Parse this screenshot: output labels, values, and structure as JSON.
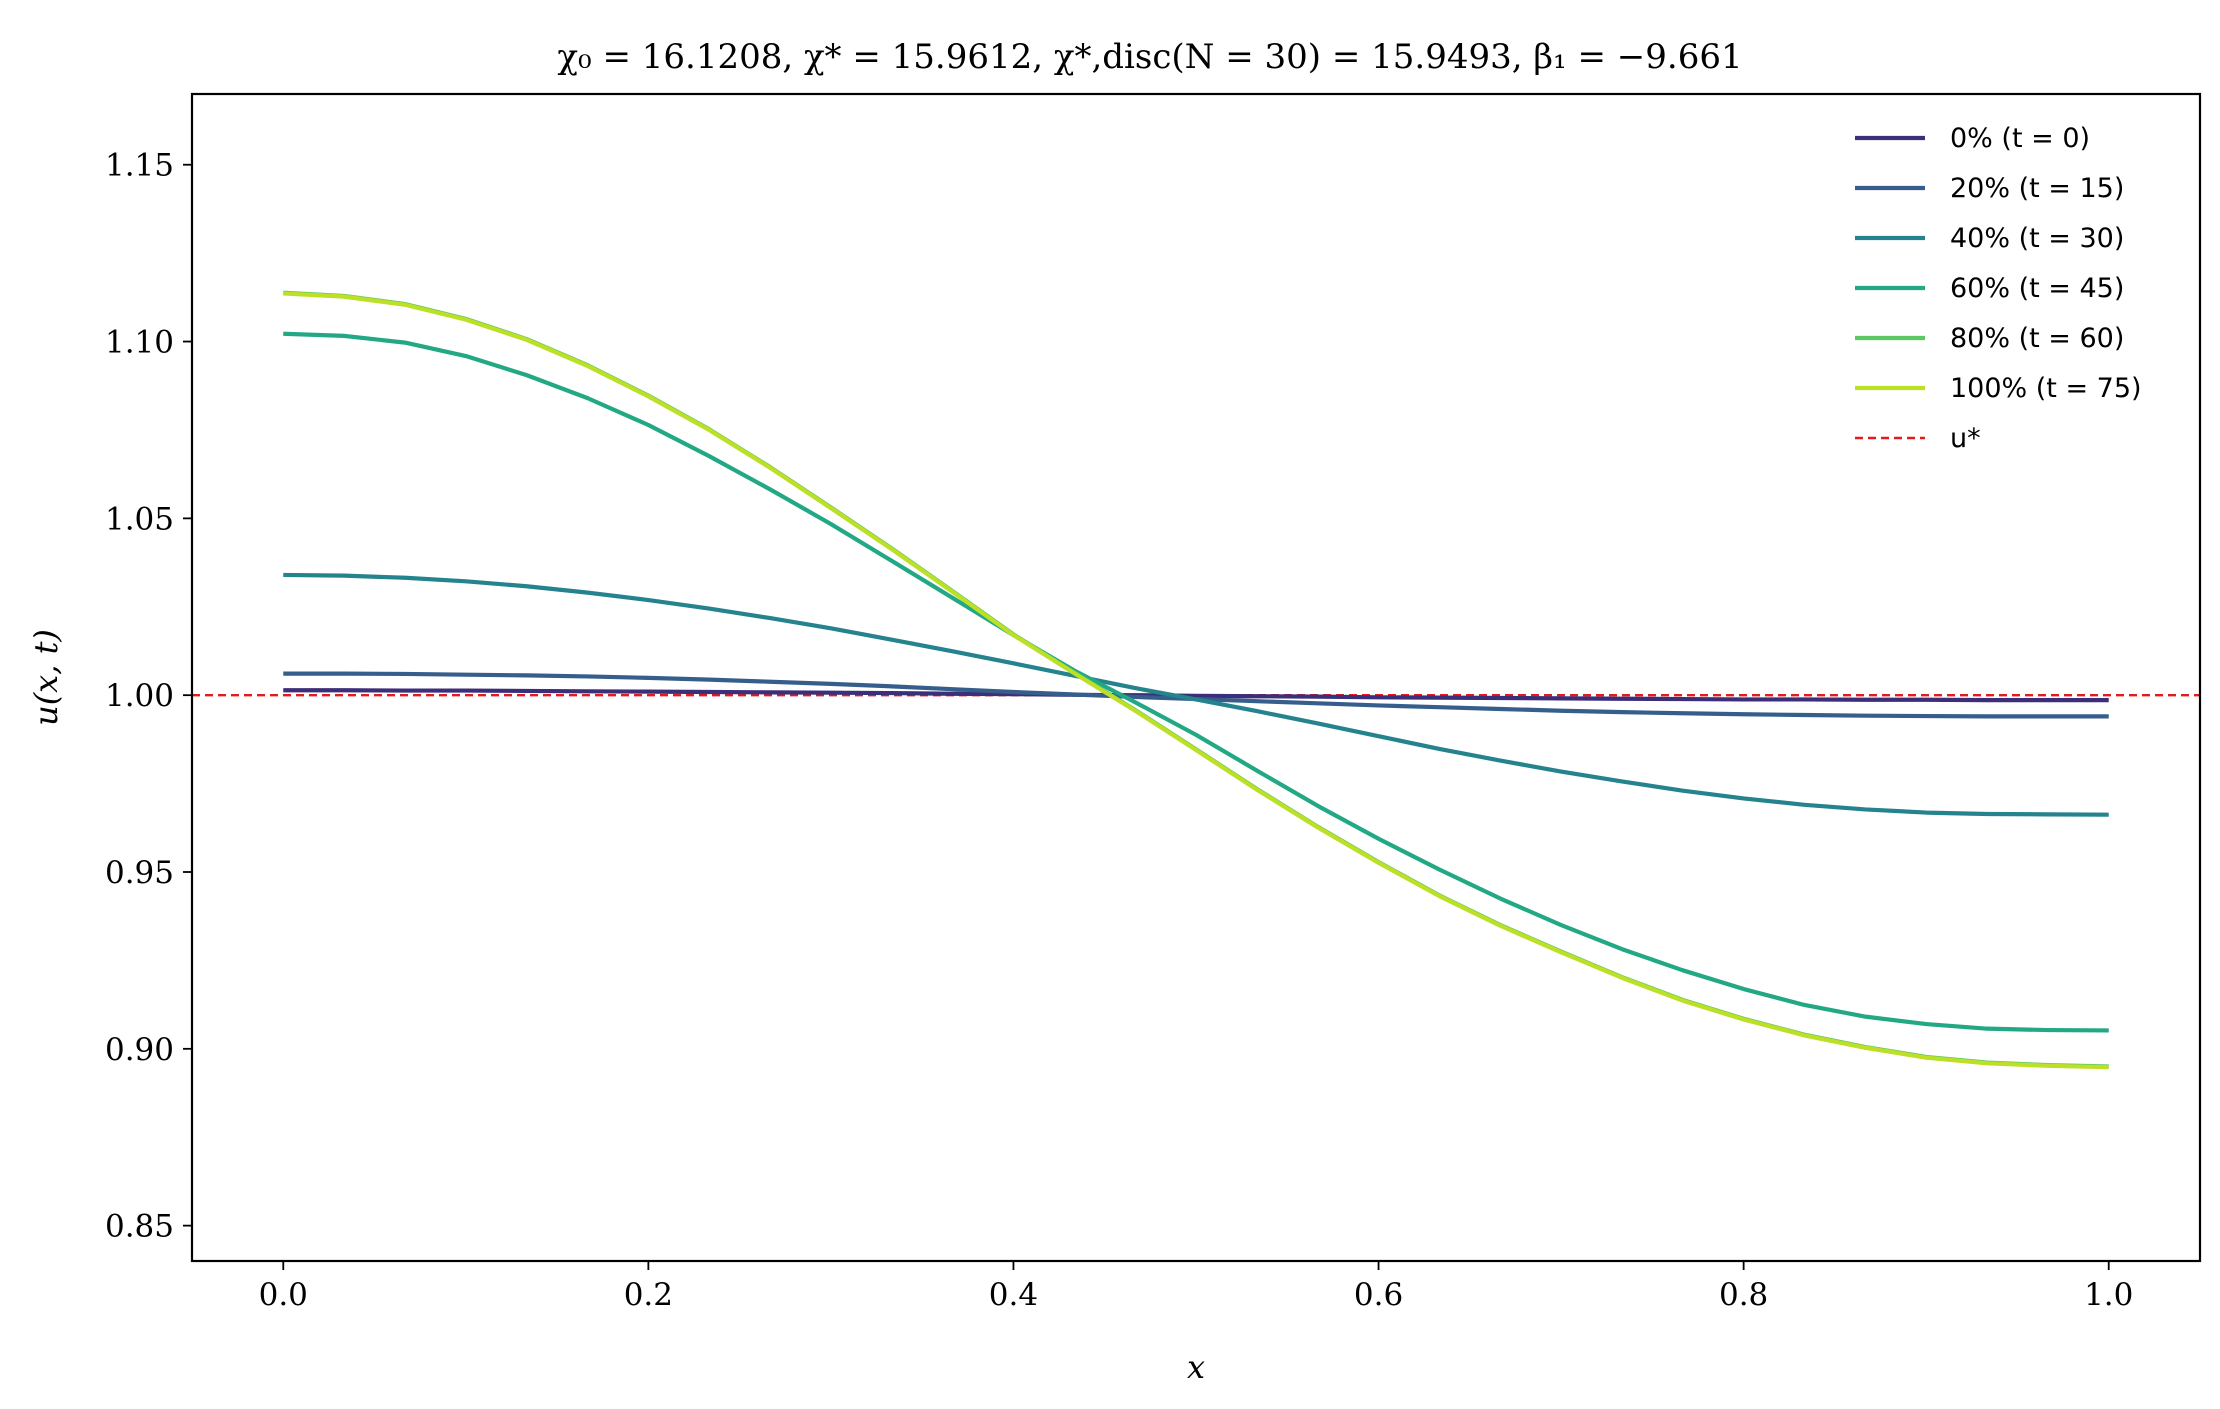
{
  "chart_data": {
    "type": "line",
    "title": "χ₀ = 16.1208,  χ* = 15.9612,  χ*,disc(N = 30) = 15.9493,  β₁ = −9.661",
    "xlabel": "x",
    "ylabel": "u(x, t)",
    "xlim": [
      -0.05,
      1.05
    ],
    "ylim": [
      0.84,
      1.17
    ],
    "xticks": [
      0.0,
      0.2,
      0.4,
      0.6,
      0.8,
      1.0
    ],
    "xtick_labels": [
      "0.0",
      "0.2",
      "0.4",
      "0.6",
      "0.8",
      "1.0"
    ],
    "yticks": [
      0.85,
      0.9,
      0.95,
      1.0,
      1.05,
      1.1,
      1.15
    ],
    "ytick_labels": [
      "0.85",
      "0.90",
      "0.95",
      "1.00",
      "1.05",
      "1.10",
      "1.15"
    ],
    "grid": false,
    "legend_position": "top-right",
    "x": [
      0.0,
      0.0333,
      0.0667,
      0.1,
      0.1333,
      0.1667,
      0.2,
      0.2333,
      0.2667,
      0.3,
      0.3333,
      0.3667,
      0.4,
      0.4333,
      0.4667,
      0.5,
      0.5333,
      0.5667,
      0.6,
      0.6333,
      0.6667,
      0.7,
      0.7333,
      0.7667,
      0.8,
      0.8333,
      0.8667,
      0.9,
      0.9333,
      0.9667,
      1.0
    ],
    "series": [
      {
        "name": "0% (t = 0)",
        "color": "#3b2f7a",
        "dashed": false,
        "values": [
          1.0014,
          1.0014,
          1.0013,
          1.0013,
          1.0012,
          1.0011,
          1.001,
          1.0009,
          1.0008,
          1.0007,
          1.0006,
          1.0004,
          1.0003,
          1.0001,
          1.0,
          0.9998,
          0.9997,
          0.9996,
          0.9994,
          0.9993,
          0.9992,
          0.9991,
          0.999,
          0.9989,
          0.9988,
          0.9988,
          0.9987,
          0.9987,
          0.9986,
          0.9986,
          0.9986
        ]
      },
      {
        "name": "20% (t = 15)",
        "color": "#355e8d",
        "dashed": false,
        "values": [
          1.0061,
          1.0061,
          1.006,
          1.0058,
          1.0056,
          1.0053,
          1.0049,
          1.0044,
          1.0038,
          1.0032,
          1.0025,
          1.0017,
          1.0009,
          1.0002,
          0.9995,
          0.9989,
          0.9983,
          0.9977,
          0.9971,
          0.9966,
          0.9961,
          0.9956,
          0.9952,
          0.9949,
          0.9946,
          0.9944,
          0.9942,
          0.9941,
          0.994,
          0.994,
          0.994
        ]
      },
      {
        "name": "40% (t = 30)",
        "color": "#25838e",
        "dashed": false,
        "values": [
          1.034,
          1.0338,
          1.0332,
          1.0322,
          1.0308,
          1.029,
          1.0269,
          1.0245,
          1.0218,
          1.0189,
          1.0157,
          1.0124,
          1.009,
          1.0055,
          1.002,
          0.9988,
          0.9955,
          0.992,
          0.9884,
          0.9848,
          0.9815,
          0.9784,
          0.9756,
          0.973,
          0.9708,
          0.969,
          0.9677,
          0.9668,
          0.9664,
          0.9663,
          0.9662
        ]
      },
      {
        "name": "60% (t = 45)",
        "color": "#22a884",
        "dashed": false,
        "values": [
          1.1022,
          1.1016,
          1.0997,
          1.0959,
          1.0905,
          1.084,
          1.0764,
          1.0676,
          1.0582,
          1.0484,
          1.038,
          1.0275,
          1.017,
          1.007,
          0.998,
          0.9888,
          0.9787,
          0.9687,
          0.9594,
          0.9507,
          0.9425,
          0.935,
          0.9282,
          0.9222,
          0.9169,
          0.9124,
          0.9091,
          0.907,
          0.9057,
          0.9053,
          0.9052
        ]
      },
      {
        "name": "80% (t = 60)",
        "color": "#5ec962",
        "dashed": false,
        "values": [
          1.1138,
          1.1129,
          1.1106,
          1.1064,
          1.1007,
          1.0933,
          1.0847,
          1.0752,
          1.0645,
          1.0531,
          1.0415,
          1.0294,
          1.0172,
          1.0064,
          0.9958,
          0.9847,
          0.9735,
          0.9628,
          0.9528,
          0.9434,
          0.935,
          0.9275,
          0.9203,
          0.9138,
          0.9085,
          0.904,
          0.9005,
          0.8977,
          0.8961,
          0.8954,
          0.895
        ]
      },
      {
        "name": "100% (t = 75)",
        "color": "#bddf26",
        "dashed": false,
        "values": [
          1.1136,
          1.1127,
          1.1104,
          1.1062,
          1.1005,
          1.0931,
          1.0845,
          1.075,
          1.0643,
          1.0529,
          1.0413,
          1.0292,
          1.017,
          1.0062,
          0.9956,
          0.9845,
          0.9733,
          0.9626,
          0.9526,
          0.9432,
          0.9348,
          0.9273,
          0.9201,
          0.9136,
          0.9083,
          0.9038,
          0.9003,
          0.8975,
          0.8959,
          0.8952,
          0.8948
        ]
      }
    ],
    "reference_line": {
      "name": "u*",
      "y": 1.0,
      "color": "#e41a1c",
      "dashed": true
    }
  }
}
